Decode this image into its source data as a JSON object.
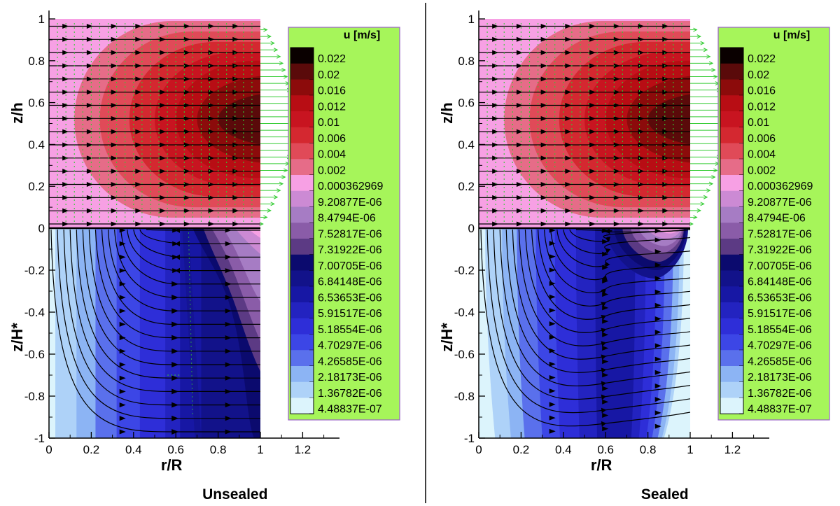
{
  "chart_data": [
    {
      "type": "contour",
      "caption": "Unsealed",
      "xlabel": "r/R",
      "ylabel_top": "z/h",
      "ylabel_bottom": "z/H*",
      "xlim": [
        0,
        1.35
      ],
      "ylim": [
        -1,
        1
      ],
      "x_ticks": [
        "0",
        "0.2",
        "0.4",
        "0.6",
        "0.8",
        "1",
        "1.2"
      ],
      "y_ticks": [
        "1",
        "0.8",
        "0.6",
        "0.4",
        "0.2",
        "0",
        "-0.2",
        "-0.4",
        "-0.6",
        "-0.8",
        "-1"
      ],
      "bottom_variant": "unsealed",
      "legend": {
        "title": "u [m/s]",
        "levels": [
          "0.022",
          "0.02",
          "0.016",
          "0.012",
          "0.01",
          "0.006",
          "0.004",
          "0.002",
          "0.000362969",
          "9.20877E-06",
          "8.4794E-06",
          "7.52817E-06",
          "7.31922E-06",
          "7.00705E-06",
          "6.84148E-06",
          "6.53653E-06",
          "5.91517E-06",
          "5.18554E-06",
          "4.70297E-06",
          "4.26585E-06",
          "2.18173E-06",
          "1.36782E-06",
          "4.48837E-07"
        ],
        "colors": [
          "#0a0000",
          "#5a0a0a",
          "#8c0b0b",
          "#b80d14",
          "#c81420",
          "#d42830",
          "#e04a58",
          "#e66c88",
          "#f7a0e4",
          "#cc8ad4",
          "#a67cc4",
          "#8a5ca8",
          "#5c3a84",
          "#0b0a6e",
          "#12128a",
          "#1717a4",
          "#2323c0",
          "#2e2ed8",
          "#3c46e6",
          "#5a70ec",
          "#8cb4f4",
          "#aed2f8",
          "#dcf4fc"
        ]
      }
    },
    {
      "type": "contour",
      "caption": "Sealed",
      "xlabel": "r/R",
      "ylabel_top": "z/h",
      "ylabel_bottom": "z/H*",
      "xlim": [
        0,
        1.35
      ],
      "ylim": [
        -1,
        1
      ],
      "x_ticks": [
        "0",
        "0.2",
        "0.4",
        "0.6",
        "0.8",
        "1",
        "1.2"
      ],
      "y_ticks": [
        "1",
        "0.8",
        "0.6",
        "0.4",
        "0.2",
        "0",
        "-0.2",
        "-0.4",
        "-0.6",
        "-0.8",
        "-1"
      ],
      "bottom_variant": "sealed",
      "legend": {
        "title": "u [m/s]",
        "levels": [
          "0.022",
          "0.02",
          "0.016",
          "0.012",
          "0.01",
          "0.006",
          "0.004",
          "0.002",
          "0.000362969",
          "9.20877E-06",
          "8.4794E-06",
          "7.52817E-06",
          "7.31922E-06",
          "7.00705E-06",
          "6.84148E-06",
          "6.53653E-06",
          "5.91517E-06",
          "5.18554E-06",
          "4.70297E-06",
          "4.26585E-06",
          "2.18173E-06",
          "1.36782E-06",
          "4.48837E-07"
        ],
        "colors": [
          "#0a0000",
          "#5a0a0a",
          "#8c0b0b",
          "#b80d14",
          "#c81420",
          "#d42830",
          "#e04a58",
          "#e66c88",
          "#f7a0e4",
          "#cc8ad4",
          "#a67cc4",
          "#8a5ca8",
          "#5c3a84",
          "#0b0a6e",
          "#12128a",
          "#1717a4",
          "#2323c0",
          "#2e2ed8",
          "#3c46e6",
          "#5a70ec",
          "#8cb4f4",
          "#aed2f8",
          "#dcf4fc"
        ]
      }
    }
  ],
  "style": {
    "legend_background": "#a6f55a",
    "legend_border": "#9a5fc9",
    "streamline_color": "#000000",
    "vector_color": "#33cc33",
    "divider_color": "#000000"
  }
}
